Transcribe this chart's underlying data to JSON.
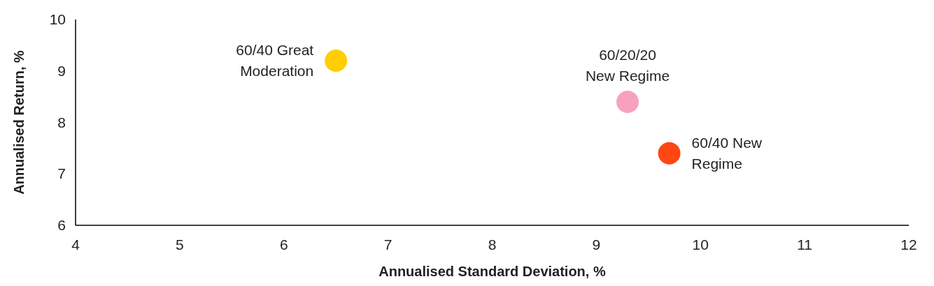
{
  "chart_data": {
    "type": "scatter",
    "xlabel": "Annualised Standard Deviation, %",
    "ylabel": "Annualised Return, %",
    "xlim": [
      4,
      12
    ],
    "xticks": [
      4,
      5,
      6,
      7,
      8,
      9,
      10,
      11,
      12
    ],
    "ylim": [
      6,
      10
    ],
    "yticks": [
      6,
      7,
      8,
      9,
      10
    ],
    "grid": false,
    "marker": "circle",
    "series": [
      {
        "name": "60/40 Great\nModeration",
        "color": "#ffce00",
        "x": [
          6.5
        ],
        "values": [
          9.2
        ]
      },
      {
        "name": "60/20/20\nNew Regime",
        "color": "#f7a1be",
        "x": [
          9.3
        ],
        "values": [
          8.4
        ]
      },
      {
        "name": "60/40 New\nRegime",
        "color": "#ff4713",
        "x": [
          9.7
        ],
        "values": [
          7.4
        ]
      }
    ]
  }
}
